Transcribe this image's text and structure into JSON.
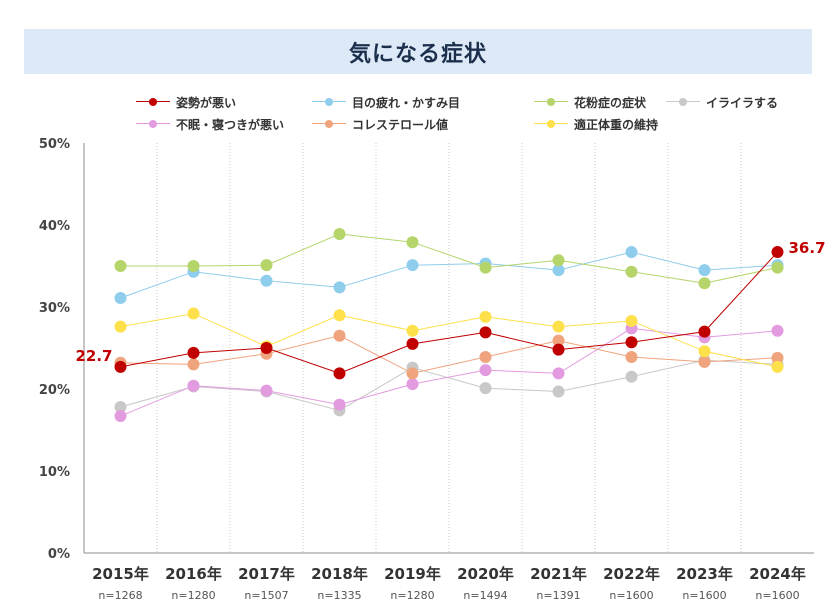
{
  "chart_data": {
    "type": "line",
    "title": "気になる症状",
    "xlabel": "",
    "ylabel": "",
    "ylim": [
      0,
      50
    ],
    "y_ticks": [
      "0%",
      "10%",
      "20%",
      "30%",
      "40%",
      "50%"
    ],
    "y_tick_values": [
      0,
      10,
      20,
      30,
      40,
      50
    ],
    "categories": [
      "2015年",
      "2016年",
      "2017年",
      "2018年",
      "2019年",
      "2020年",
      "2021年",
      "2022年",
      "2023年",
      "2024年"
    ],
    "sample_sizes": [
      "n=1268",
      "n=1280",
      "n=1507",
      "n=1335",
      "n=1280",
      "n=1494",
      "n=1391",
      "n=1600",
      "n=1600",
      "n=1600"
    ],
    "series": [
      {
        "name": "イライラする",
        "color": "#c8c8c8",
        "values": [
          17.8,
          20.3,
          19.7,
          17.4,
          22.6,
          20.1,
          19.7,
          21.5,
          23.5,
          23.0
        ]
      },
      {
        "name": "不眠・寝つきが悪い",
        "color": "#e39be0",
        "values": [
          16.7,
          20.4,
          19.8,
          18.1,
          20.6,
          22.3,
          21.9,
          27.4,
          26.3,
          27.1
        ]
      },
      {
        "name": "コレステロール値",
        "color": "#f0a47e",
        "values": [
          23.2,
          23.0,
          24.3,
          26.5,
          21.9,
          23.9,
          25.9,
          23.9,
          23.3,
          23.8
        ]
      },
      {
        "name": "適正体重の維持",
        "color": "#fde04a",
        "values": [
          27.6,
          29.2,
          25.2,
          29.0,
          27.1,
          28.8,
          27.6,
          28.3,
          24.6,
          22.7
        ]
      },
      {
        "name": "目の疲れ・かすみ目",
        "color": "#8fcdec",
        "values": [
          31.1,
          34.3,
          33.2,
          32.4,
          35.1,
          35.3,
          34.5,
          36.7,
          34.5,
          35.1
        ]
      },
      {
        "name": "花粉症の症状",
        "color": "#b5d56a",
        "values": [
          35.0,
          35.0,
          35.1,
          38.9,
          37.9,
          34.8,
          35.7,
          34.3,
          32.9,
          34.8
        ]
      },
      {
        "name": "姿勢が悪い",
        "color": "#c00000",
        "values": [
          22.7,
          24.4,
          25.0,
          21.9,
          25.5,
          26.9,
          24.8,
          25.7,
          27.0,
          36.7
        ]
      }
    ],
    "legend_order": [
      "姿勢が悪い",
      "目の疲れ・かすみ目",
      "花粉症の症状",
      "イライラする",
      "不眠・寝つきが悪い",
      "コレステロール値",
      "適正体重の維持"
    ],
    "annotations": [
      {
        "series": "姿勢が悪い",
        "category": "2015年",
        "text": "22.7",
        "color": "#c00000"
      },
      {
        "series": "姿勢が悪い",
        "category": "2024年",
        "text": "36.7",
        "color": "#c00000"
      }
    ],
    "grid": {
      "vertical": true,
      "horizontal": false
    },
    "legend_position": "top"
  }
}
